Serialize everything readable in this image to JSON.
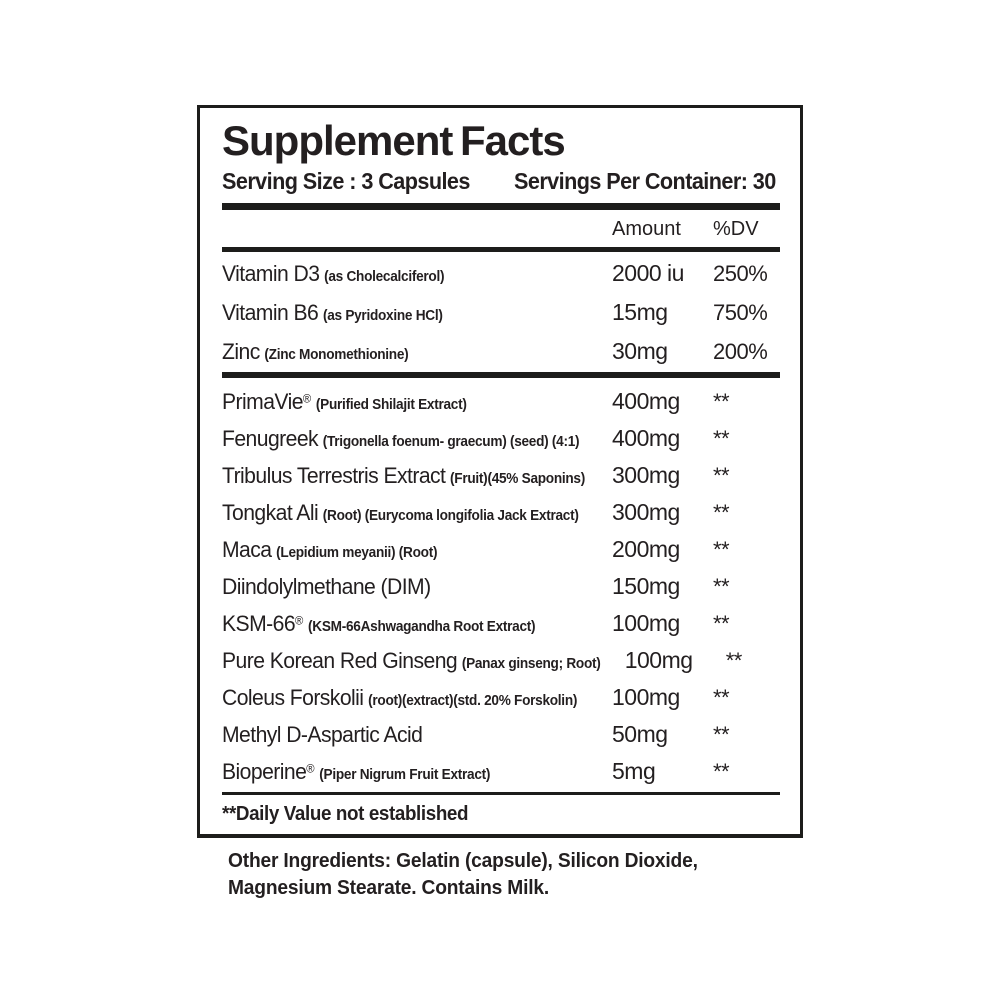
{
  "page": {
    "title": "Supplement Facts",
    "serving_size_label": "Serving Size : 3 Capsules",
    "servings_per_container_label": "Servings Per Container: 30",
    "columns": {
      "amount": "Amount",
      "dv": "%DV"
    },
    "vitamins": [
      {
        "name": "Vitamin D3",
        "mark": "",
        "detail": "(as Cholecalciferol)",
        "amount": "2000 iu",
        "dv": "250%"
      },
      {
        "name": "Vitamin B6",
        "mark": "",
        "detail": "(as Pyridoxine HCl)",
        "amount": "15mg",
        "dv": "750%"
      },
      {
        "name": "Zinc",
        "mark": "",
        "detail": "(Zinc Monomethionine)",
        "amount": "30mg",
        "dv": "200%"
      }
    ],
    "ingredients": [
      {
        "name": "PrimaVie",
        "mark": "®",
        "detail": "(Purified Shilajit Extract)",
        "amount": "400mg",
        "dv": "**"
      },
      {
        "name": "Fenugreek",
        "mark": "",
        "detail": "(Trigonella foenum- graecum) (seed) (4:1)",
        "amount": "400mg",
        "dv": "**"
      },
      {
        "name": "Tribulus Terrestris Extract",
        "mark": "",
        "detail": "(Fruit)(45% Saponins)",
        "amount": "300mg",
        "dv": "**"
      },
      {
        "name": "Tongkat Ali",
        "mark": "",
        "detail": "(Root) (Eurycoma longifolia Jack Extract)",
        "amount": "300mg",
        "dv": "**"
      },
      {
        "name": "Maca",
        "mark": "",
        "detail": "(Lepidium meyanii) (Root)",
        "amount": "200mg",
        "dv": "**"
      },
      {
        "name": "Diindolylmethane (DIM)",
        "mark": "",
        "detail": "",
        "amount": "150mg",
        "dv": "**"
      },
      {
        "name": "KSM-66",
        "mark": "®",
        "detail": "(KSM-66Ashwagandha Root Extract)",
        "amount": "100mg",
        "dv": "**"
      },
      {
        "name": "Pure Korean Red Ginseng",
        "mark": "",
        "detail": "(Panax ginseng; Root)",
        "amount": "100mg",
        "dv": "**"
      },
      {
        "name": "Coleus Forskolii",
        "mark": "",
        "detail": "(root)(extract)(std. 20% Forskolin)",
        "amount": "100mg",
        "dv": "**"
      },
      {
        "name": "Methyl D-Aspartic Acid",
        "mark": "",
        "detail": "",
        "amount": "50mg",
        "dv": "**"
      },
      {
        "name": "Bioperine",
        "mark": "®",
        "detail": "(Piper Nigrum Fruit Extract)",
        "amount": "5mg",
        "dv": "**"
      }
    ],
    "footnote": "**Daily Value not established",
    "other_ingredients": {
      "line1": "Other Ingredients: Gelatin (capsule), Silicon Dioxide,",
      "line2": "Magnesium Stearate. Contains Milk."
    },
    "colors": {
      "ink": "#231f20",
      "rule": "#1d1d1b",
      "background": "#ffffff"
    }
  }
}
